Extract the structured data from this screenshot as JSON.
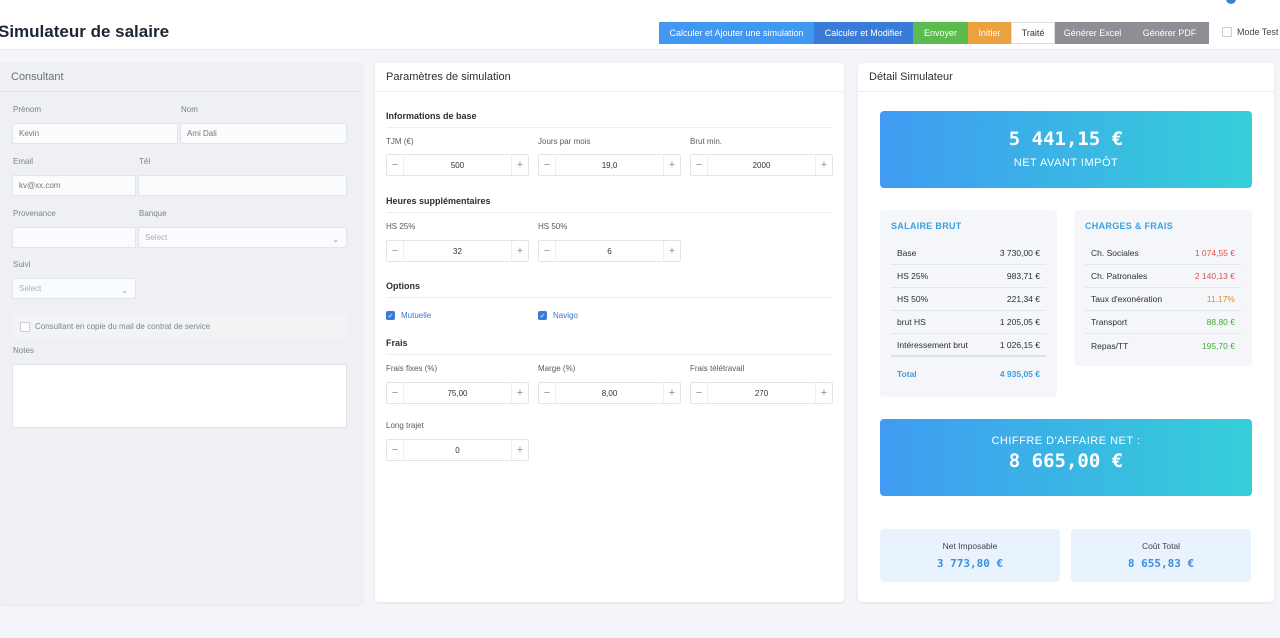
{
  "header": {
    "title": "Simulateur de salaire",
    "buttons": {
      "calc_add": "Calculer et Ajouter une simulation",
      "calc_modify": "Calculer et Modifier",
      "send": "Envoyer",
      "initiate": "Initier",
      "done": "Traité",
      "excel": "Générer Excel",
      "pdf": "Générer PDF"
    },
    "mode_test": "Mode Test"
  },
  "consultant": {
    "title": "Consultant",
    "firstname_label": "Prénom",
    "firstname_value": "Kevin",
    "lastname_label": "Nom",
    "lastname_value": "Ami Dali",
    "email_label": "Email",
    "email_value": "kv@xx.com",
    "phone_label": "Tél",
    "phone_value": "",
    "origin_label": "Provenance",
    "origin_value": "",
    "bank_label": "Banque",
    "bank_placeholder": "Select",
    "follow_label": "Suivi",
    "follow_placeholder": "Select",
    "copy_label": "Consultant en copie du mail de contrat de service",
    "notes_label": "Notes"
  },
  "params": {
    "title": "Paramètres de simulation",
    "base": {
      "title": "Informations de base",
      "tjm_label": "TJM (€)",
      "tjm": "500",
      "days_label": "Jours par mois",
      "days": "19,0",
      "brut_label": "Brut min.",
      "brut": "2000"
    },
    "overtime": {
      "title": "Heures supplémentaires",
      "hs25_label": "HS 25%",
      "hs25": "32",
      "hs50_label": "HS 50%",
      "hs50": "6"
    },
    "options": {
      "title": "Options",
      "mutuelle": "Mutuelle",
      "navigo": "Navigo"
    },
    "fees": {
      "title": "Frais",
      "fixed_label": "Frais fixes (%)",
      "fixed": "75,00",
      "margin_label": "Marge (%)",
      "margin": "8,00",
      "remote_label": "Frais télétravail",
      "remote": "270",
      "long_label": "Long trajet",
      "long": "0"
    }
  },
  "detail": {
    "title": "Détail Simulateur",
    "net_value": "5 441,15 €",
    "net_label": "NET AVANT IMPÔT",
    "gross": {
      "title": "SALAIRE BRUT",
      "rows": [
        {
          "label": "Base",
          "value": "3 730,00 €"
        },
        {
          "label": "HS 25%",
          "value": "983,71 €"
        },
        {
          "label": "HS 50%",
          "value": "221,34 €"
        },
        {
          "label": "brut HS",
          "value": "1 205,05 €"
        },
        {
          "label": "Intéressement brut",
          "value": "1 026,15 €"
        }
      ],
      "total_label": "Total",
      "total_value": "4 935,05 €"
    },
    "charges": {
      "title": "CHARGES & FRAIS",
      "rows": [
        {
          "label": "Ch. Sociales",
          "value": "1 074,55 €"
        },
        {
          "label": "Ch. Patronales",
          "value": "2 140,13 €"
        },
        {
          "label": "Taux d'exonération",
          "value": "11.17%"
        },
        {
          "label": "Transport",
          "value": "88,80 €"
        },
        {
          "label": "Repas/TT",
          "value": "195,70 €"
        }
      ]
    },
    "ca_label": "CHIFFRE D'AFFAIRE NET :",
    "ca_value": "8 665,00 €",
    "taxable_label": "Net Imposable",
    "taxable_value": "3 773,80 €",
    "total_cost_label": "Coût Total",
    "total_cost_value": "8 655,83 €"
  },
  "colors": {
    "primary": "#4297f0",
    "modify": "#3a7bd8",
    "send": "#5cba4e",
    "init": "#e9a23f",
    "gray": "#8d8f94",
    "negative": "#e0514e",
    "rate": "#e3892e",
    "positive": "#46a83b"
  }
}
